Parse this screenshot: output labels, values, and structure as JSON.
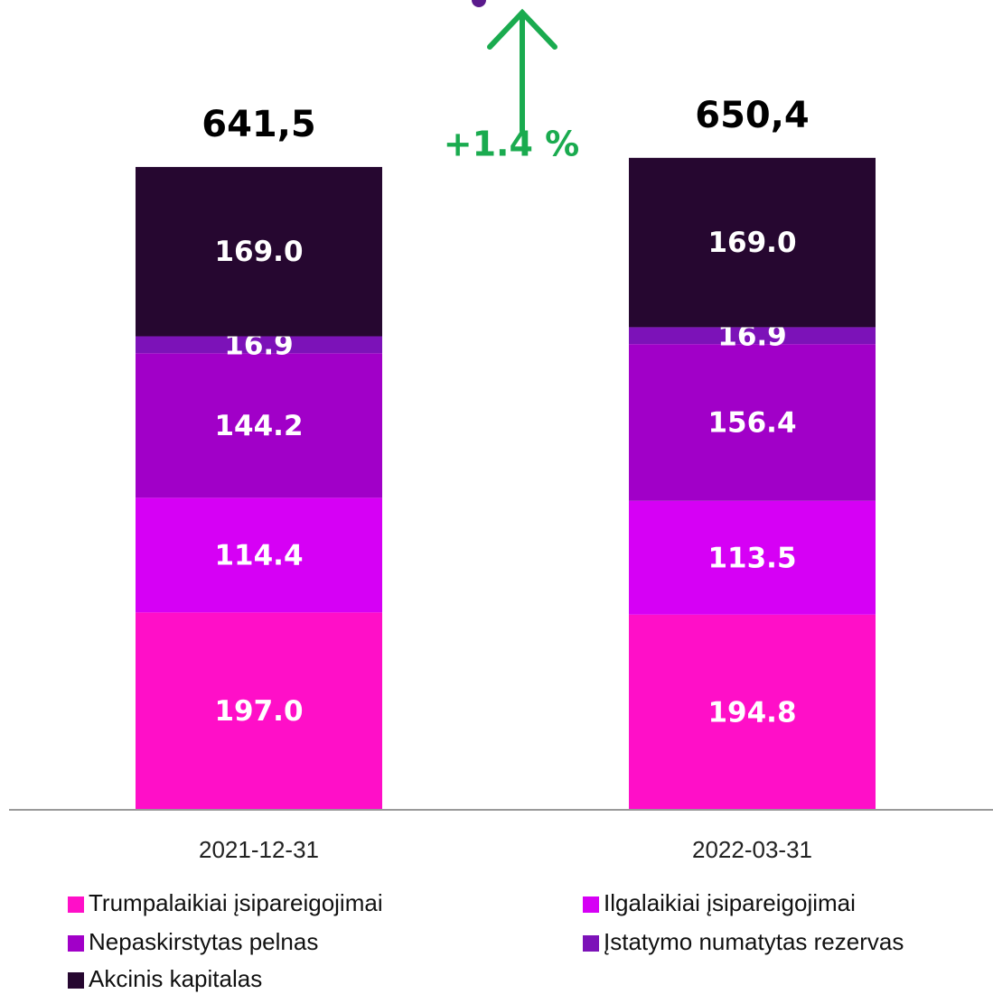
{
  "chart_data": {
    "type": "stacked_bar",
    "categories": [
      "2021-12-31",
      "2022-03-31"
    ],
    "series": [
      {
        "name": "Trumpalaikiai įsipareigojimai",
        "color": "#ff0fc8",
        "values": [
          197.0,
          194.8
        ],
        "value_labels": [
          "197.0",
          "194.8"
        ]
      },
      {
        "name": "Ilgalaikiai įsipareigojimai",
        "color": "#d600f5",
        "values": [
          114.4,
          113.5
        ],
        "value_labels": [
          "114.4",
          "113.5"
        ]
      },
      {
        "name": "Nepaskirstytas pelnas",
        "color": "#a100c8",
        "values": [
          144.2,
          156.4
        ],
        "value_labels": [
          "144.2",
          "156.4"
        ]
      },
      {
        "name": "Įstatymo numatytas rezervas",
        "color": "#7c12b8",
        "values": [
          16.9,
          16.9
        ],
        "value_labels": [
          "16.9",
          "16.9"
        ]
      },
      {
        "name": "Akcinis kapitalas",
        "color": "#260730",
        "values": [
          169.0,
          169.0
        ],
        "value_labels": [
          "169.0",
          "169.0"
        ]
      }
    ],
    "totals": [
      641.5,
      650.4
    ],
    "total_labels": [
      "641,5",
      "650,4"
    ],
    "annotation": "+1.4 %",
    "ylim": [
      0,
      800
    ]
  }
}
